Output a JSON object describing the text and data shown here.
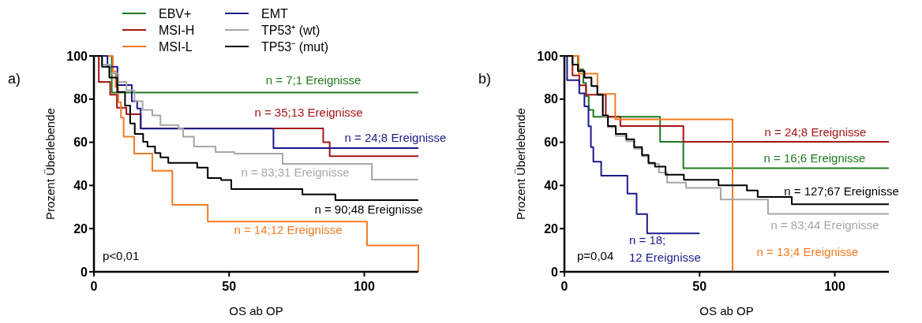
{
  "chart_data": [
    {
      "type": "step",
      "title": "a)",
      "xlabel": "OS ab OP",
      "ylabel": "Prozent Überlebende",
      "xlim": [
        0,
        120
      ],
      "xticks": [
        0,
        50,
        100
      ],
      "ylim": [
        0,
        100
      ],
      "yticks": [
        0,
        20,
        40,
        60,
        80,
        100
      ],
      "legend": "top",
      "series": [
        {
          "name": "EBV+",
          "color": "#1e7b1e",
          "x": [
            0,
            6.6,
            120
          ],
          "values": [
            100,
            83,
            83
          ]
        },
        {
          "name": "MSI-H",
          "color": "#a31515",
          "x": [
            0,
            1.8,
            6,
            8.5,
            12,
            17.3,
            84.8,
            87.2,
            120
          ],
          "values": [
            100,
            88,
            82,
            76,
            73,
            66.4,
            60,
            53.6,
            53.6
          ]
        },
        {
          "name": "MSI-L",
          "color": "#f47a20",
          "x": [
            0,
            7,
            8,
            9,
            10,
            11,
            14.9,
            21.6,
            29,
            42.1,
            101,
            120
          ],
          "values": [
            100,
            92.9,
            85.7,
            78.6,
            71.4,
            62.6,
            54.7,
            46.8,
            31,
            23.3,
            12.2,
            0
          ]
        },
        {
          "name": "EMT",
          "color": "#1a1a8c",
          "x": [
            0,
            5,
            8.7,
            14,
            16,
            17.3,
            66.4,
            120
          ],
          "values": [
            100,
            95,
            86.5,
            79,
            75.6,
            66.3,
            57.3,
            57.3
          ]
        },
        {
          "name": "TP53⁺ (wt)",
          "color": "#a6a6a6",
          "x": [
            0,
            3,
            6,
            9,
            12,
            15,
            18,
            21.6,
            24.6,
            31.3,
            33,
            37,
            45,
            52,
            69.8,
            102.8,
            120
          ],
          "values": [
            100,
            96,
            92,
            88,
            84,
            79,
            75,
            72.4,
            68,
            66.3,
            62.6,
            58,
            55.5,
            54.7,
            50,
            42.7,
            42.7
          ]
        },
        {
          "name": "TP53⁻ (mut)",
          "color": "#000000",
          "x": [
            0,
            3,
            5.7,
            8.6,
            11.5,
            13.4,
            15.1,
            18.2,
            19.8,
            22.6,
            24.6,
            27.5,
            38.2,
            42.1,
            47,
            50.8,
            77.1,
            89.3,
            120
          ],
          "values": [
            100,
            95,
            90,
            83.3,
            77,
            68.7,
            63.9,
            60.2,
            58,
            55,
            53,
            50.5,
            48.3,
            43.4,
            42.5,
            38.3,
            35.9,
            33.2,
            33.2
          ]
        }
      ],
      "annotations": [
        "n = 7;1 Ereignisse",
        "n = 35;13 Ereignisse",
        "n = 24;8 Ereignisse",
        "n = 83;31 Ereignisse",
        "n = 90;48 Ereignisse",
        "n = 14;12 Ereignisse",
        "p<0,01"
      ]
    },
    {
      "type": "step",
      "title": "b)",
      "xlabel": "OS ab OP",
      "ylabel": "Prozent Überlebende",
      "xlim": [
        0,
        120
      ],
      "xticks": [
        0,
        50,
        100
      ],
      "ylim": [
        0,
        100
      ],
      "yticks": [
        0,
        20,
        40,
        60,
        80,
        100
      ],
      "series": [
        {
          "color": "#1e7b1e",
          "x": [
            0,
            5,
            7,
            8,
            9,
            10.7,
            35.4,
            44,
            120
          ],
          "values": [
            100,
            93.8,
            87.5,
            81.3,
            75,
            71.8,
            60.2,
            48,
            48
          ]
        },
        {
          "color": "#a31515",
          "x": [
            0,
            3,
            5.5,
            8,
            15.3,
            20.7,
            44,
            120
          ],
          "values": [
            100,
            91,
            86.4,
            82,
            71.8,
            67.5,
            60.2,
            60.2
          ]
        },
        {
          "color": "#f47a20",
          "x": [
            0,
            5.3,
            12.2,
            18.8,
            62.2
          ],
          "values": [
            100,
            91.8,
            82.4,
            70.6,
            0
          ]
        },
        {
          "color": "#1a1a8c",
          "x": [
            0,
            1,
            5.5,
            7.4,
            8.9,
            9.8,
            10.7,
            13.6,
            23.3,
            26.7,
            30.6,
            50
          ],
          "values": [
            100,
            88.8,
            82.7,
            76.6,
            67.4,
            57.8,
            51,
            44.5,
            36.2,
            26.7,
            17.8,
            17.8
          ]
        },
        {
          "color": "#a6a6a6",
          "x": [
            0,
            3,
            5,
            7.4,
            10,
            12.2,
            14.2,
            16.1,
            19,
            22.9,
            25.8,
            28.7,
            31.1,
            35,
            38,
            45,
            57.8,
            75.3,
            120
          ],
          "values": [
            100,
            96,
            93,
            90,
            86,
            82,
            72,
            67,
            63,
            60.5,
            57,
            53.5,
            50,
            46,
            41.3,
            38.9,
            33.5,
            26.8,
            26.8
          ]
        },
        {
          "color": "#000000",
          "x": [
            0,
            3,
            5,
            7.4,
            10,
            12.2,
            14.2,
            16.1,
            19,
            22.9,
            25.8,
            28.7,
            31.1,
            33.5,
            37.4,
            44.2,
            57,
            67.5,
            71.5,
            84.1,
            120
          ],
          "values": [
            100,
            96,
            93,
            90,
            86,
            82,
            72.4,
            67.5,
            63.9,
            61.4,
            57.8,
            54.1,
            50.5,
            48.7,
            45,
            42.6,
            40.1,
            37.7,
            34.7,
            31.3,
            31.3
          ]
        }
      ],
      "annotations": [
        "n = 24;8 Ereignisse",
        "n = 16;6 Ereignisse",
        "n = 127;67 Ereignisse",
        "n = 83;44 Ereignisse",
        "n = 18;\n12 Ereignisse",
        "n = 13;4 Ereignisse",
        "p=0,04"
      ]
    }
  ]
}
